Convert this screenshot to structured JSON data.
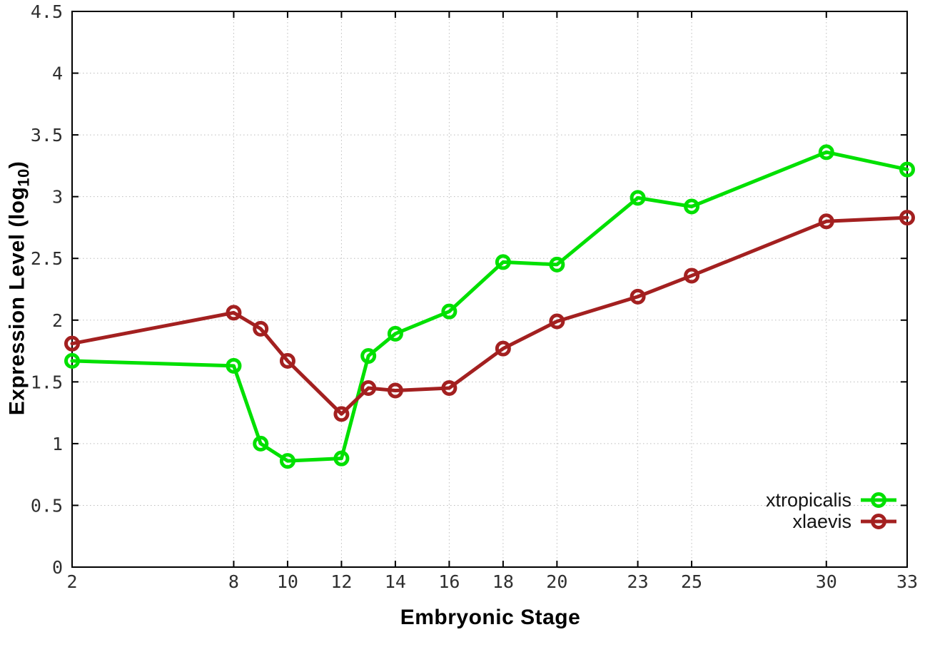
{
  "chart_data": {
    "type": "line",
    "title": "",
    "xlabel": "Embryonic Stage",
    "ylabel": "Expression Level (log10)",
    "ylabel_parts": {
      "prefix": "Expression Level (log",
      "sub": "10",
      "suffix": ")"
    },
    "xlim": [
      2,
      33
    ],
    "ylim": [
      0,
      4.5
    ],
    "xticks": [
      2,
      8,
      10,
      12,
      14,
      16,
      18,
      20,
      23,
      25,
      30,
      33
    ],
    "yticks": [
      0,
      0.5,
      1,
      1.5,
      2,
      2.5,
      3,
      3.5,
      4,
      4.5
    ],
    "grid": true,
    "grid_style": "dotted",
    "legend_position": "inside-bottom-right",
    "marker": "open-circle",
    "background_color": "#ffffff",
    "axis_color": "#000000",
    "grid_color": "#bdbdbd",
    "tick_label_color": "#2f2f2f",
    "x": [
      2,
      8,
      9,
      10,
      12,
      13,
      14,
      16,
      18,
      20,
      23,
      25,
      30,
      33
    ],
    "series": [
      {
        "name": "xtropicalis",
        "color": "#00e000",
        "values": [
          1.67,
          1.63,
          1.0,
          0.86,
          0.88,
          1.71,
          1.89,
          2.07,
          2.47,
          2.45,
          2.99,
          2.92,
          3.36,
          3.22
        ]
      },
      {
        "name": "xlaevis",
        "color": "#a32020",
        "values": [
          1.81,
          2.06,
          1.93,
          1.67,
          1.24,
          1.45,
          1.43,
          1.45,
          1.77,
          1.99,
          2.19,
          2.36,
          2.8,
          2.83
        ]
      }
    ]
  }
}
